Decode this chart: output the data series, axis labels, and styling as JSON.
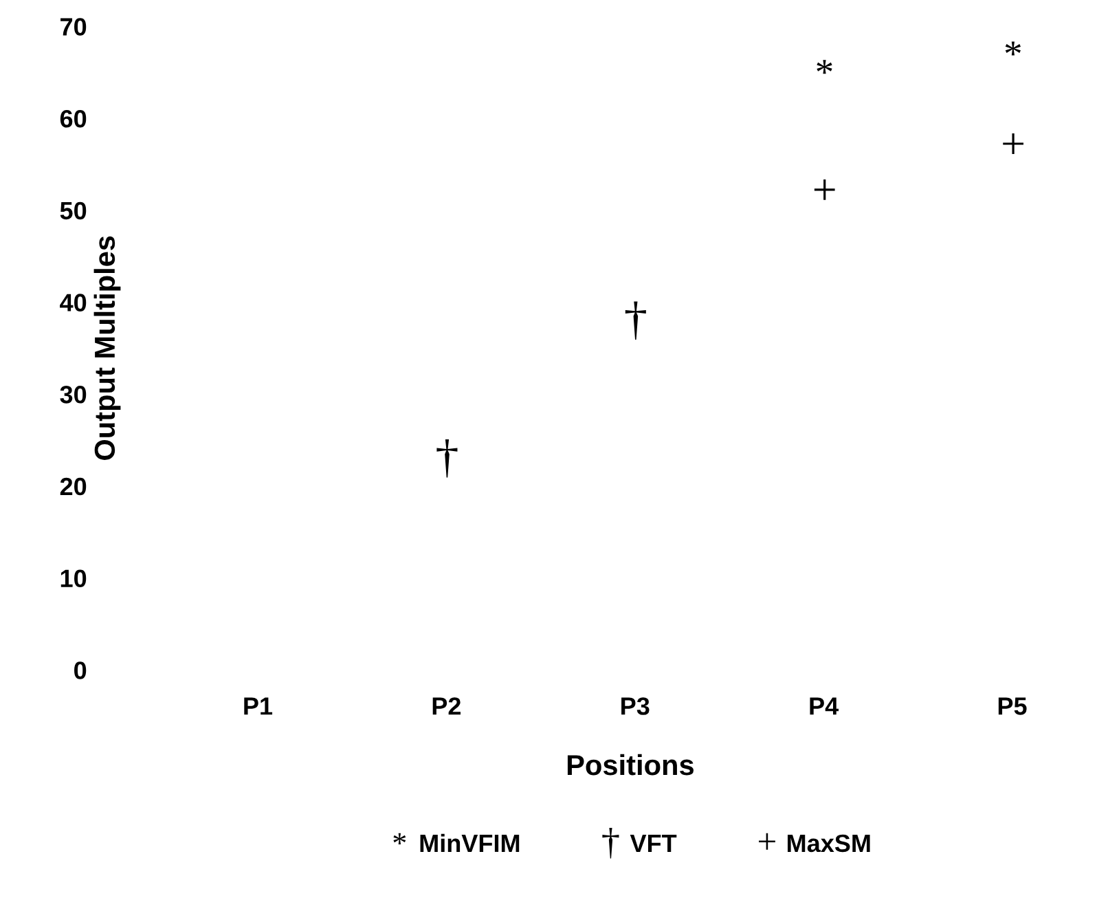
{
  "chart_data": {
    "type": "scatter",
    "xlabel": "Positions",
    "ylabel": "Output Multiples",
    "categories": [
      "P1",
      "P2",
      "P3",
      "P4",
      "P5"
    ],
    "ylim": [
      0,
      70
    ],
    "yticks": [
      0,
      10,
      20,
      30,
      40,
      50,
      60,
      70
    ],
    "grid": false,
    "legend": "bottom",
    "series": [
      {
        "name": "MinVFIM",
        "color": "#000000",
        "marker": "star",
        "values": [
          null,
          null,
          null,
          65,
          67
        ]
      },
      {
        "name": "VFT",
        "color": "#000000",
        "values": [
          null,
          23,
          38,
          null,
          null
        ]
      },
      {
        "name": "MaxSM",
        "color": "#000000",
        "marker": "cross",
        "values": [
          null,
          null,
          null,
          52,
          57
        ]
      }
    ]
  }
}
